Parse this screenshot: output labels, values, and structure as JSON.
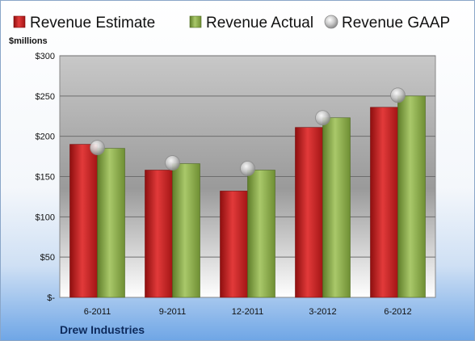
{
  "chart_data": {
    "type": "bar",
    "ylabel": "$millions",
    "categories": [
      "6-2011",
      "9-2011",
      "12-2011",
      "3-2012",
      "6-2012"
    ],
    "series": [
      {
        "name": "Revenue Estimate",
        "kind": "bar",
        "color": "#cc1f1f",
        "values": [
          190,
          158,
          132,
          211,
          236
        ]
      },
      {
        "name": "Revenue Actual",
        "kind": "bar",
        "color": "#8fb04a",
        "values": [
          185,
          166,
          158,
          223,
          250
        ]
      },
      {
        "name": "Revenue GAAP",
        "kind": "marker",
        "color": "#b9b9b9",
        "values": [
          186,
          167,
          160,
          223,
          251
        ]
      }
    ],
    "ylim": [
      0,
      300
    ],
    "yticks": [
      0,
      50,
      100,
      150,
      200,
      250,
      300
    ],
    "ytick_labels": [
      "$-",
      "$50",
      "$100",
      "$150",
      "$200",
      "$250",
      "$300"
    ],
    "grid": true,
    "legend": "top"
  },
  "footer": {
    "company": "Drew Industries"
  }
}
